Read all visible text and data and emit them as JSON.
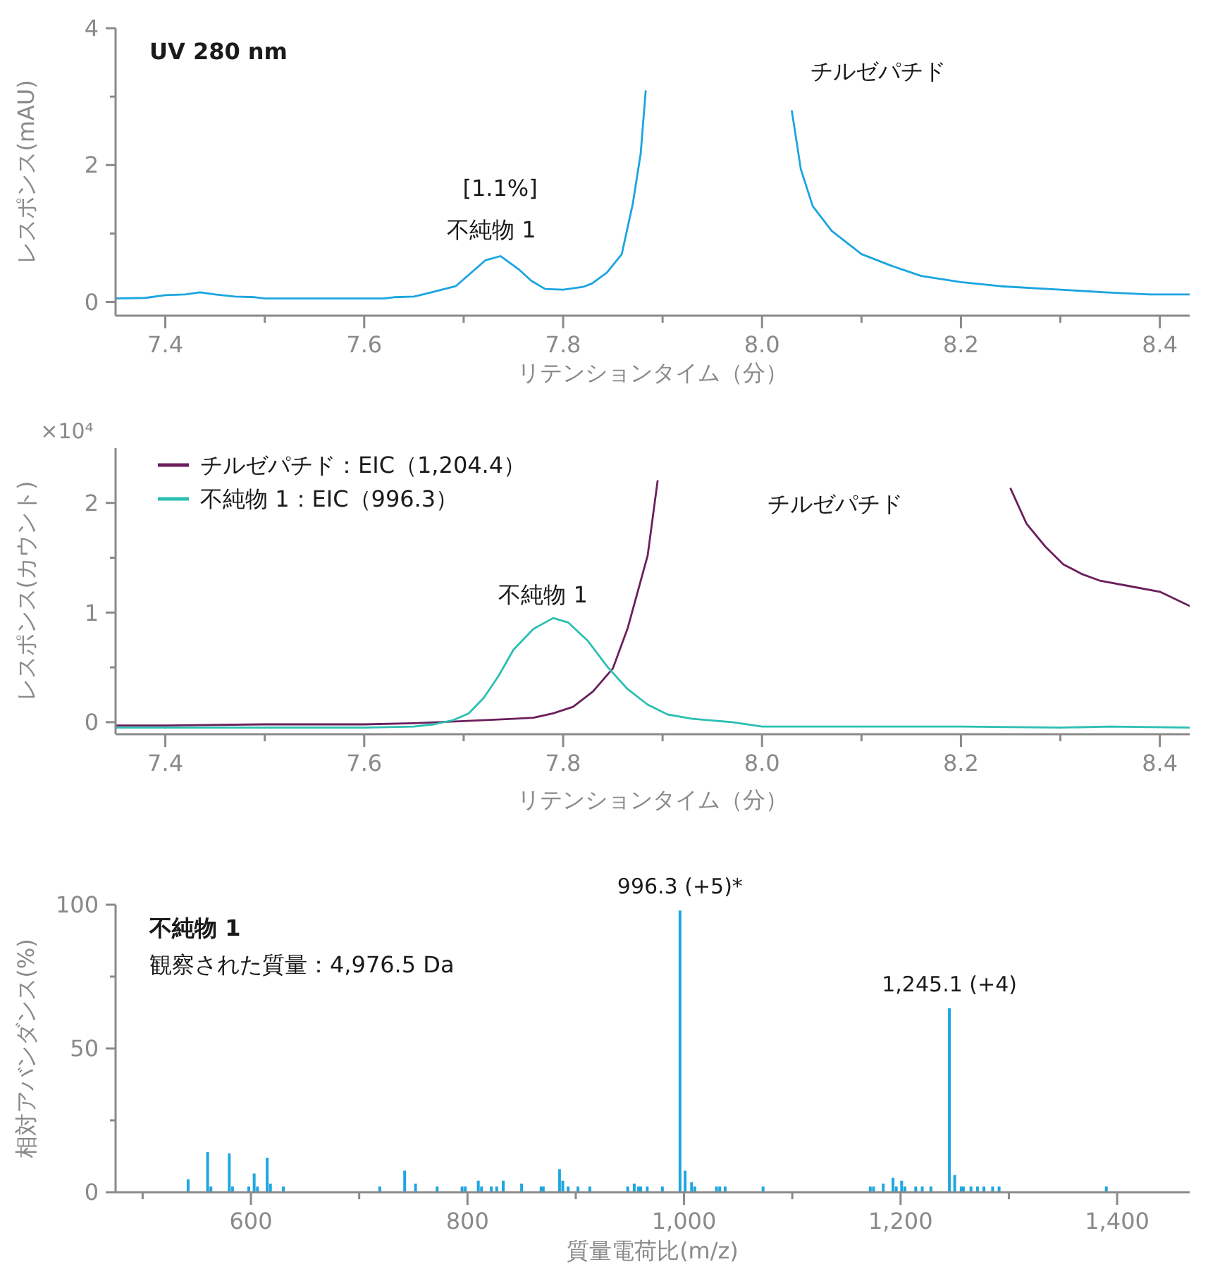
{
  "chart_data": [
    {
      "type": "line",
      "title": "UV 280 nm",
      "xlabel": "リテンションタイム（分）",
      "ylabel": "レスポンス(mAU)",
      "xlim": [
        7.35,
        8.43
      ],
      "ylim": [
        -0.2,
        4
      ],
      "xticks": [
        7.4,
        {
          "value": 7.5,
          "label": null
        },
        7.6,
        {
          "value": 7.7,
          "label": null
        },
        7.8,
        {
          "value": 7.9,
          "label": null
        },
        {
          "value": 8.0,
          "label": "8.0"
        },
        {
          "value": 8.1,
          "label": null
        },
        8.2,
        {
          "value": 8.3,
          "label": null
        },
        8.4
      ],
      "yticks": [
        0,
        {
          "value": 1,
          "label": null
        },
        2,
        {
          "value": 3,
          "label": null
        },
        4
      ],
      "annotations": [
        "[1.1%]",
        "不純物 1",
        "チルゼパチド"
      ],
      "series": [
        {
          "color": "#1ba5e0",
          "x": [
            7.35,
            7.38,
            7.4,
            7.42,
            7.435,
            7.45,
            7.47,
            7.49,
            7.5,
            7.55,
            7.6,
            7.62,
            7.63,
            7.65,
            7.662,
            7.692,
            7.722,
            7.737,
            7.756,
            7.768,
            7.782,
            7.8,
            7.82,
            7.829,
            7.844,
            7.859,
            7.87,
            7.878,
            7.883,
            7.887,
            7.95,
            8.024,
            8.03,
            8.039,
            8.051,
            8.07,
            8.1,
            8.13,
            8.16,
            8.2,
            8.24,
            8.3,
            8.345,
            8.39,
            8.43
          ],
          "values": [
            0.05,
            0.06,
            0.1,
            0.11,
            0.14,
            0.11,
            0.08,
            0.07,
            0.05,
            0.05,
            0.05,
            0.05,
            0.07,
            0.08,
            0.12,
            0.23,
            0.61,
            0.67,
            0.47,
            0.31,
            0.19,
            0.18,
            0.22,
            0.27,
            0.43,
            0.7,
            1.43,
            2.17,
            3.08,
            null,
            null,
            null,
            2.79,
            1.94,
            1.4,
            1.04,
            0.7,
            0.53,
            0.38,
            0.29,
            0.23,
            0.18,
            0.14,
            0.11,
            0.11
          ]
        }
      ]
    },
    {
      "type": "line",
      "xlabel": "リテンションタイム（分）",
      "ylabel": "レスポンス(カウント)",
      "xlim": [
        7.35,
        8.43
      ],
      "ylim": [
        -0.11,
        2.5
      ],
      "legend": "top left",
      "xticks": [
        7.4,
        {
          "value": 7.5,
          "label": null
        },
        7.6,
        {
          "value": 7.7,
          "label": null
        },
        7.8,
        {
          "value": 7.9,
          "label": null
        },
        {
          "value": 8.0,
          "label": "8.0"
        },
        {
          "value": 8.1,
          "label": null
        },
        8.2,
        {
          "value": 8.3,
          "label": null
        },
        8.4
      ],
      "yticks": [
        0,
        {
          "value": 0.5,
          "label": null
        },
        1,
        {
          "value": 1.5,
          "label": null
        },
        2
      ],
      "annotations": [
        "×10⁴",
        "不純物 1",
        "チルゼパチド"
      ],
      "series": [
        {
          "name": "チルゼパチド：EIC（1,204.4）",
          "color": "#6b1f5c",
          "x": [
            7.35,
            7.4,
            7.5,
            7.6,
            7.65,
            7.7,
            7.75,
            7.77,
            7.79,
            7.81,
            7.83,
            7.85,
            7.865,
            7.885,
            7.895,
            7.902,
            8.0,
            8.237,
            8.25,
            8.266,
            8.285,
            8.303,
            8.322,
            8.34,
            8.37,
            8.4,
            8.43
          ],
          "values": [
            -0.03,
            -0.03,
            -0.02,
            -0.02,
            -0.01,
            0.01,
            0.03,
            0.04,
            0.08,
            0.14,
            0.28,
            0.49,
            0.86,
            1.52,
            2.2,
            null,
            null,
            null,
            2.13,
            1.81,
            1.6,
            1.44,
            1.35,
            1.29,
            1.24,
            1.19,
            1.06
          ]
        },
        {
          "name": "不純物 1：EIC（996.3）",
          "color": "#2bbfb2",
          "x": [
            7.35,
            7.5,
            7.6,
            7.65,
            7.67,
            7.69,
            7.705,
            7.72,
            7.735,
            7.75,
            7.77,
            7.79,
            7.805,
            7.825,
            7.845,
            7.865,
            7.885,
            7.905,
            7.93,
            7.97,
            8.0,
            8.1,
            8.2,
            8.3,
            8.35,
            8.43
          ],
          "values": [
            -0.05,
            -0.05,
            -0.05,
            -0.04,
            -0.02,
            0.02,
            0.08,
            0.22,
            0.42,
            0.66,
            0.85,
            0.95,
            0.91,
            0.74,
            0.5,
            0.3,
            0.16,
            0.07,
            0.03,
            0,
            -0.04,
            -0.04,
            -0.04,
            -0.05,
            -0.04,
            -0.05
          ]
        }
      ]
    },
    {
      "type": "bar",
      "title": "不純物 1",
      "subtitle": "観察された質量：4,976.5 Da",
      "xlabel": "質量電荷比(m/z)",
      "ylabel": "相対アバンダンス(%)",
      "xlim": [
        475,
        1467
      ],
      "ylim": [
        0,
        100
      ],
      "xticks": [
        {
          "value": 500,
          "label": null
        },
        600,
        {
          "value": 700,
          "label": null
        },
        800,
        {
          "value": 900,
          "label": null
        },
        {
          "value": 1000,
          "label": "1,000"
        },
        {
          "value": 1100,
          "label": null
        },
        {
          "value": 1200,
          "label": "1,200"
        },
        {
          "value": 1300,
          "label": null
        },
        {
          "value": 1400,
          "label": "1,400"
        }
      ],
      "yticks": [
        0,
        {
          "value": 25,
          "label": null
        },
        50,
        {
          "value": 75,
          "label": null
        },
        100
      ],
      "annotations": [
        {
          "text": "996.3 (+5)*",
          "x": 996.3,
          "y": 98
        },
        {
          "text": "1,245.1 (+4)",
          "x": 1245.1,
          "y": 64
        }
      ],
      "series": [
        {
          "color": "#1ea7e1",
          "x": [
            542,
            560,
            563,
            580,
            583,
            598,
            603,
            606,
            615,
            618,
            630,
            719,
            742,
            752,
            772,
            795,
            798,
            810,
            813,
            822,
            827,
            833,
            850,
            868,
            870,
            885,
            888,
            893,
            902,
            913,
            948,
            954,
            958,
            960,
            966,
            980,
            996.3,
            1001,
            1007,
            1010,
            1030,
            1033,
            1038,
            1073,
            1172,
            1175,
            1184,
            1193,
            1196,
            1201,
            1204,
            1214,
            1220,
            1228,
            1245.1,
            1250,
            1256,
            1258,
            1265,
            1271,
            1277,
            1285,
            1291,
            1390
          ],
          "values": [
            4.5,
            14,
            2,
            13.5,
            2,
            2,
            6.5,
            2,
            12,
            3,
            2,
            2,
            7.5,
            3,
            2,
            2,
            2,
            4,
            2,
            2,
            2,
            4,
            3,
            2,
            2,
            8,
            4,
            2,
            2,
            2,
            2,
            3,
            2,
            2,
            2,
            2,
            98,
            7.5,
            3.5,
            2,
            2,
            2,
            2,
            2,
            2,
            2,
            3,
            5,
            2,
            4,
            2,
            2,
            2,
            2,
            64,
            6,
            2,
            2,
            2,
            2,
            2,
            2,
            2,
            2
          ]
        }
      ]
    }
  ]
}
